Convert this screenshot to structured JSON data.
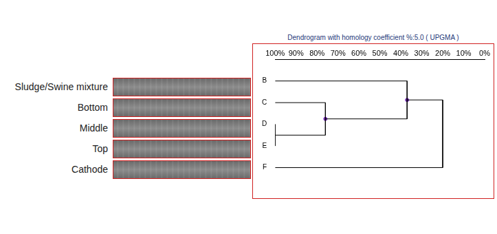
{
  "chart_data": {
    "type": "dendrogram",
    "title": "Dendrogram with homology coefficient %:5.0 ( UPGMA )",
    "color": "#000000",
    "xlim": [
      100,
      0
    ],
    "xticks": [
      {
        "value": 100,
        "label": "100%"
      },
      {
        "value": 90,
        "label": "90%"
      },
      {
        "value": 80,
        "label": "80%"
      },
      {
        "value": 70,
        "label": "70%"
      },
      {
        "value": 60,
        "label": "60%"
      },
      {
        "value": 50,
        "label": "50%"
      },
      {
        "value": 40,
        "label": "40%"
      },
      {
        "value": 30,
        "label": "30%"
      },
      {
        "value": 20,
        "label": "20%"
      },
      {
        "value": 10,
        "label": "10%"
      },
      {
        "value": 0,
        "label": "0%"
      }
    ],
    "grid": false,
    "tree": {
      "height": 20,
      "children": [
        {
          "height": 37,
          "children": [
            {
              "label": "B"
            },
            {
              "height": 76,
              "children": [
                {
                  "label": "C"
                },
                {
                  "height": 100,
                  "children": [
                    {
                      "label": "D"
                    },
                    {
                      "label": "E"
                    }
                  ]
                }
              ]
            }
          ]
        },
        {
          "label": "F"
        }
      ]
    }
  },
  "lanes": [
    "Sludge/Swine mixture",
    "Bottom",
    "Middle",
    "Top",
    "Cathode"
  ]
}
